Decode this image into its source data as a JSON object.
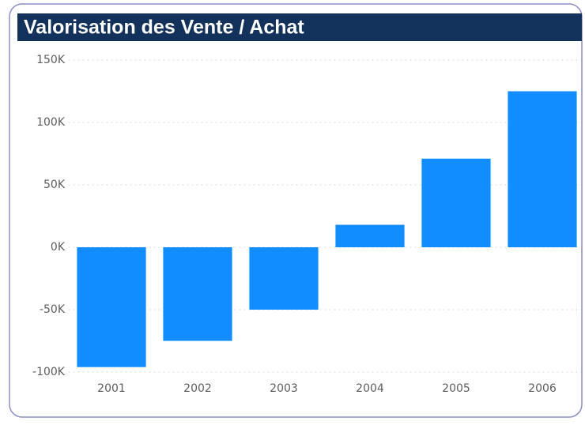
{
  "chart_data": {
    "type": "bar",
    "title": "Valorisation des Vente / Achat",
    "categories": [
      "2001",
      "2002",
      "2003",
      "2004",
      "2005",
      "2006"
    ],
    "values": [
      -96000,
      -75000,
      -50000,
      18000,
      71000,
      125000
    ],
    "color": "#118dff",
    "ylim": [
      -100000,
      150000
    ],
    "yticks": [
      {
        "value": -100000,
        "label": "-100K"
      },
      {
        "value": -50000,
        "label": "-50K"
      },
      {
        "value": 0,
        "label": "0K"
      },
      {
        "value": 50000,
        "label": "50K"
      },
      {
        "value": 100000,
        "label": "100K"
      },
      {
        "value": 150000,
        "label": "150K"
      }
    ],
    "grid": true
  }
}
